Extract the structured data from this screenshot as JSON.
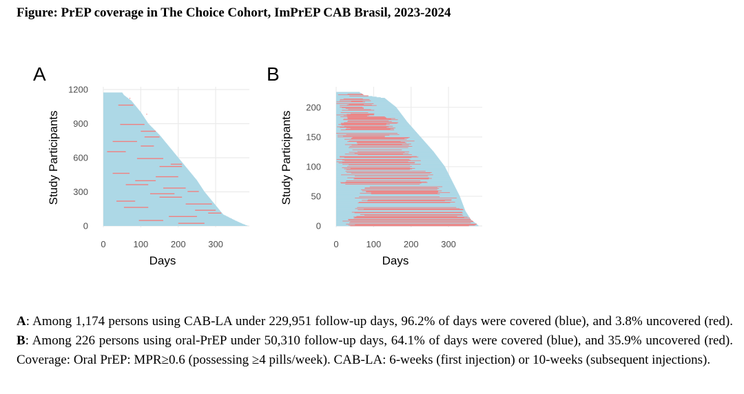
{
  "figure": {
    "title": "Figure: PrEP coverage in The Choice Cohort, ImPrEP CAB Brasil, 2023-2024"
  },
  "colors": {
    "covered": "#add8e6",
    "uncovered": "#f08080",
    "axis_text": "#4d4d4d",
    "grid": "#ebebeb"
  },
  "chart_data": [
    {
      "panel": "A",
      "type": "bar",
      "subtype": "swimmer",
      "xlabel": "Days",
      "ylabel": "Study Participants",
      "xlim": [
        0,
        390
      ],
      "ylim": [
        0,
        1200
      ],
      "xticks": [
        "0",
        "100",
        "200",
        "300"
      ],
      "yticks": [
        "0",
        "300",
        "600",
        "900",
        "1200"
      ],
      "n_participants": 1174,
      "legend": {
        "covered": "blue",
        "uncovered": "red"
      },
      "profile_days_by_rank": [
        [
          0,
          385
        ],
        [
          20,
          370
        ],
        [
          50,
          350
        ],
        [
          100,
          320
        ],
        [
          200,
          295
        ],
        [
          300,
          270
        ],
        [
          400,
          250
        ],
        [
          500,
          225
        ],
        [
          600,
          200
        ],
        [
          700,
          175
        ],
        [
          800,
          150
        ],
        [
          900,
          120
        ],
        [
          1000,
          100
        ],
        [
          1100,
          75
        ],
        [
          1150,
          55
        ],
        [
          1174,
          50
        ]
      ],
      "uncovered_segments": [
        {
          "p": 20,
          "start": 200,
          "end": 270
        },
        {
          "p": 45,
          "start": 95,
          "end": 160
        },
        {
          "p": 80,
          "start": 175,
          "end": 250
        },
        {
          "p": 110,
          "start": 280,
          "end": 315
        },
        {
          "p": 135,
          "start": 245,
          "end": 300
        },
        {
          "p": 160,
          "start": 55,
          "end": 120
        },
        {
          "p": 190,
          "start": 220,
          "end": 290
        },
        {
          "p": 215,
          "start": 35,
          "end": 85
        },
        {
          "p": 250,
          "start": 150,
          "end": 210
        },
        {
          "p": 280,
          "start": 125,
          "end": 190
        },
        {
          "p": 300,
          "start": 225,
          "end": 255
        },
        {
          "p": 330,
          "start": 160,
          "end": 220
        },
        {
          "p": 360,
          "start": 60,
          "end": 120
        },
        {
          "p": 395,
          "start": 85,
          "end": 140
        },
        {
          "p": 430,
          "start": 140,
          "end": 200
        },
        {
          "p": 460,
          "start": 25,
          "end": 70
        },
        {
          "p": 520,
          "start": 150,
          "end": 210
        },
        {
          "p": 540,
          "start": 180,
          "end": 210
        },
        {
          "p": 590,
          "start": 90,
          "end": 160
        },
        {
          "p": 650,
          "start": 10,
          "end": 60
        },
        {
          "p": 700,
          "start": 100,
          "end": 135
        },
        {
          "p": 740,
          "start": 25,
          "end": 90
        },
        {
          "p": 780,
          "start": 110,
          "end": 150
        },
        {
          "p": 830,
          "start": 100,
          "end": 140
        },
        {
          "p": 890,
          "start": 45,
          "end": 110
        },
        {
          "p": 980,
          "start": 115,
          "end": 150
        },
        {
          "p": 1060,
          "start": 40,
          "end": 80
        },
        {
          "p": 1120,
          "start": 70,
          "end": 95
        }
      ]
    },
    {
      "panel": "B",
      "type": "bar",
      "subtype": "swimmer",
      "xlabel": "Days",
      "ylabel": "Study Participants",
      "xlim": [
        0,
        390
      ],
      "ylim": [
        0,
        230
      ],
      "xticks": [
        "0",
        "100",
        "200",
        "300"
      ],
      "yticks": [
        "0",
        "50",
        "100",
        "150",
        "200"
      ],
      "n_participants": 226,
      "legend": {
        "covered": "blue",
        "uncovered": "red"
      },
      "profile_days_by_rank": [
        [
          0,
          380
        ],
        [
          3,
          375
        ],
        [
          10,
          360
        ],
        [
          25,
          345
        ],
        [
          50,
          330
        ],
        [
          75,
          310
        ],
        [
          100,
          290
        ],
        [
          125,
          260
        ],
        [
          150,
          225
        ],
        [
          175,
          190
        ],
        [
          200,
          160
        ],
        [
          215,
          130
        ],
        [
          220,
          75
        ],
        [
          226,
          60
        ]
      ],
      "row_groups": [
        {
          "from": 0,
          "to": 12,
          "uncovered_from": 15,
          "uncovered_to": 370
        },
        {
          "from": 12,
          "to": 30,
          "uncovered_from": 40,
          "uncovered_to": 340
        },
        {
          "from": 30,
          "to": 48,
          "uncovered_from": 45,
          "uncovered_to": 310
        },
        {
          "from": 48,
          "to": 70,
          "uncovered_from": 60,
          "uncovered_to": 290
        },
        {
          "from": 70,
          "to": 95,
          "uncovered_from": 10,
          "uncovered_to": 240
        },
        {
          "from": 95,
          "to": 120,
          "uncovered_from": 0,
          "uncovered_to": 210
        },
        {
          "from": 120,
          "to": 150,
          "uncovered_from": 20,
          "uncovered_to": 190
        },
        {
          "from": 150,
          "to": 185,
          "uncovered_from": 0,
          "uncovered_to": 150
        },
        {
          "from": 185,
          "to": 226,
          "uncovered_from": 0,
          "uncovered_to": 90
        }
      ]
    }
  ],
  "caption": {
    "a_label": "A",
    "a_text": ": Among 1,174 persons using CAB-LA under 229,951 follow-up days, 96.2% of days were covered (blue), and 3.8% uncovered (red). ",
    "b_label": "B",
    "b_text": ": Among 226 persons using oral-PrEP under 50,310 follow-up days, 64.1% of days were covered (blue), and 35.9% uncovered (red). Coverage: Oral PrEP: MPR≥0.6 (possessing ≥4 pills/week). CAB-LA: 6-weeks (first injection) or 10-weeks (subsequent injections)."
  }
}
